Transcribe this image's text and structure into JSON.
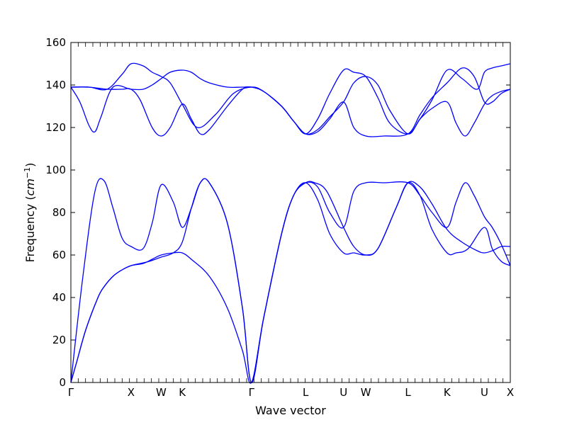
{
  "chart_data": {
    "type": "line",
    "title": "",
    "xlabel": "Wave vector",
    "ylabel_prefix": "Frequency (",
    "ylabel_unit": "cm",
    "ylabel_exponent": "−1",
    "ylabel_suffix": ")",
    "ylim": [
      0,
      160
    ],
    "yticks": [
      0,
      20,
      40,
      60,
      80,
      100,
      120,
      140,
      160
    ],
    "xlim": [
      0,
      7.3
    ],
    "grid": false,
    "legend": "none",
    "line_color": "#0000ff",
    "high_symmetry_points": [
      {
        "label": "Γ",
        "x": 0.0
      },
      {
        "label": "X",
        "x": 1.0
      },
      {
        "label": "W",
        "x": 1.5
      },
      {
        "label": "K",
        "x": 1.85
      },
      {
        "label": "Γ",
        "x": 3.0
      },
      {
        "label": "L",
        "x": 3.9
      },
      {
        "label": "U",
        "x": 4.53
      },
      {
        "label": "W",
        "x": 4.9
      },
      {
        "label": "L",
        "x": 5.6
      },
      {
        "label": "K",
        "x": 6.25
      },
      {
        "label": "U",
        "x": 6.87
      },
      {
        "label": "X",
        "x": 7.3
      }
    ],
    "series": [
      {
        "x": [
          0,
          0.1,
          0.25,
          0.45,
          0.55,
          0.7,
          0.85,
          1.0,
          1.2,
          1.35,
          1.5,
          1.7,
          1.85,
          2.0,
          2.3,
          2.6,
          2.85,
          3.0,
          3.2,
          3.5,
          3.7,
          3.9,
          4.05,
          4.25,
          4.53,
          4.7,
          4.9,
          5.1,
          5.4,
          5.6,
          5.8,
          6.0,
          6.25,
          6.4,
          6.6,
          6.87,
          7.0,
          7.15,
          7.3
        ],
        "y": [
          0,
          10,
          25,
          40,
          45,
          50,
          53,
          55,
          56,
          58,
          60,
          61,
          61,
          58,
          50,
          35,
          15,
          0,
          30,
          70,
          88,
          94,
          94,
          90,
          73,
          64,
          60,
          63,
          82,
          94,
          88,
          72,
          61,
          61,
          63,
          73,
          63,
          57,
          55
        ]
      },
      {
        "x": [
          0,
          0.1,
          0.25,
          0.45,
          0.55,
          0.7,
          0.85,
          1.0,
          1.15,
          1.3,
          1.5,
          1.7,
          1.85,
          2.0,
          2.15,
          2.3,
          2.6,
          2.85,
          3.0,
          3.2,
          3.5,
          3.7,
          3.9,
          4.1,
          4.3,
          4.53,
          4.7,
          4.9,
          5.1,
          5.4,
          5.6,
          5.8,
          6.0,
          6.25,
          6.5,
          6.75,
          6.87,
          7.0,
          7.15,
          7.3
        ],
        "y": [
          0,
          10,
          25,
          40,
          45,
          50,
          53,
          55,
          56,
          57,
          59,
          61,
          66,
          82,
          94,
          94,
          75,
          35,
          0,
          30,
          70,
          88,
          94,
          86,
          70,
          61,
          61,
          60,
          63,
          82,
          94,
          92,
          84,
          72,
          66,
          62,
          61,
          62,
          64,
          64
        ]
      },
      {
        "x": [
          0,
          0.2,
          0.4,
          0.55,
          0.7,
          0.85,
          1.0,
          1.2,
          1.35,
          1.5,
          1.7,
          1.85,
          2.0,
          2.15,
          2.3,
          2.6,
          2.85,
          3.0,
          3.2,
          3.5,
          3.7,
          3.9,
          4.1,
          4.3,
          4.53,
          4.7,
          4.9,
          5.2,
          5.6,
          5.8,
          6.0,
          6.25,
          6.4,
          6.55,
          6.7,
          6.87,
          7.0,
          7.15,
          7.3
        ],
        "y": [
          0,
          50,
          90,
          95,
          82,
          68,
          64,
          63,
          75,
          93,
          85,
          73,
          82,
          94,
          94,
          75,
          35,
          0,
          30,
          70,
          88,
          94,
          92,
          80,
          73,
          90,
          94,
          94,
          94,
          88,
          80,
          73,
          85,
          94,
          88,
          78,
          73,
          65,
          55
        ]
      },
      {
        "x": [
          0,
          0.15,
          0.3,
          0.4,
          0.5,
          0.7,
          1.0,
          1.2,
          1.35,
          1.5,
          1.65,
          1.85,
          2.0,
          2.15,
          2.3,
          2.6,
          2.85,
          3.0,
          3.2,
          3.5,
          3.7,
          3.9,
          4.1,
          4.3,
          4.53,
          4.7,
          4.9,
          5.2,
          5.6,
          5.8,
          6.0,
          6.25,
          6.5,
          6.7,
          6.87,
          7.0,
          7.15,
          7.3
        ],
        "y": [
          139,
          132,
          121,
          118,
          125,
          139,
          138,
          138,
          140,
          143,
          146,
          147,
          146,
          143,
          141,
          139,
          139,
          139,
          137,
          130,
          123,
          117,
          118,
          124,
          132,
          120,
          116,
          116,
          117,
          126,
          134,
          141,
          148,
          144,
          132,
          132,
          136,
          138
        ]
      },
      {
        "x": [
          0,
          0.3,
          0.6,
          0.85,
          1.0,
          1.15,
          1.35,
          1.5,
          1.65,
          1.85,
          2.0,
          2.15,
          2.3,
          2.6,
          2.85,
          3.0,
          3.2,
          3.5,
          3.7,
          3.9,
          4.1,
          4.3,
          4.53,
          4.7,
          4.9,
          5.1,
          5.3,
          5.6,
          5.8,
          6.0,
          6.25,
          6.4,
          6.55,
          6.7,
          6.87,
          7.0,
          7.15,
          7.3
        ],
        "y": [
          139,
          139,
          138,
          138,
          138,
          133,
          120,
          116,
          120,
          131,
          124,
          117,
          119,
          130,
          138,
          139,
          137,
          130,
          123,
          117,
          119,
          125,
          132,
          141,
          144,
          140,
          128,
          117,
          124,
          129,
          132,
          122,
          116,
          122,
          131,
          135,
          137,
          138
        ]
      },
      {
        "x": [
          0,
          0.3,
          0.6,
          0.85,
          1.0,
          1.2,
          1.35,
          1.5,
          1.65,
          1.85,
          2.1,
          2.4,
          2.7,
          3.0,
          3.2,
          3.5,
          3.7,
          3.9,
          4.1,
          4.3,
          4.53,
          4.7,
          4.9,
          5.1,
          5.3,
          5.6,
          5.8,
          6.0,
          6.25,
          6.5,
          6.75,
          6.87,
          7.0,
          7.15,
          7.3
        ],
        "y": [
          139,
          139,
          138,
          145,
          150,
          149,
          146,
          144,
          141,
          131,
          120,
          126,
          136,
          139,
          137,
          130,
          123,
          117,
          124,
          136,
          147,
          146,
          144,
          134,
          122,
          117,
          124,
          133,
          147,
          143,
          138,
          146,
          148,
          149,
          150
        ]
      }
    ]
  }
}
